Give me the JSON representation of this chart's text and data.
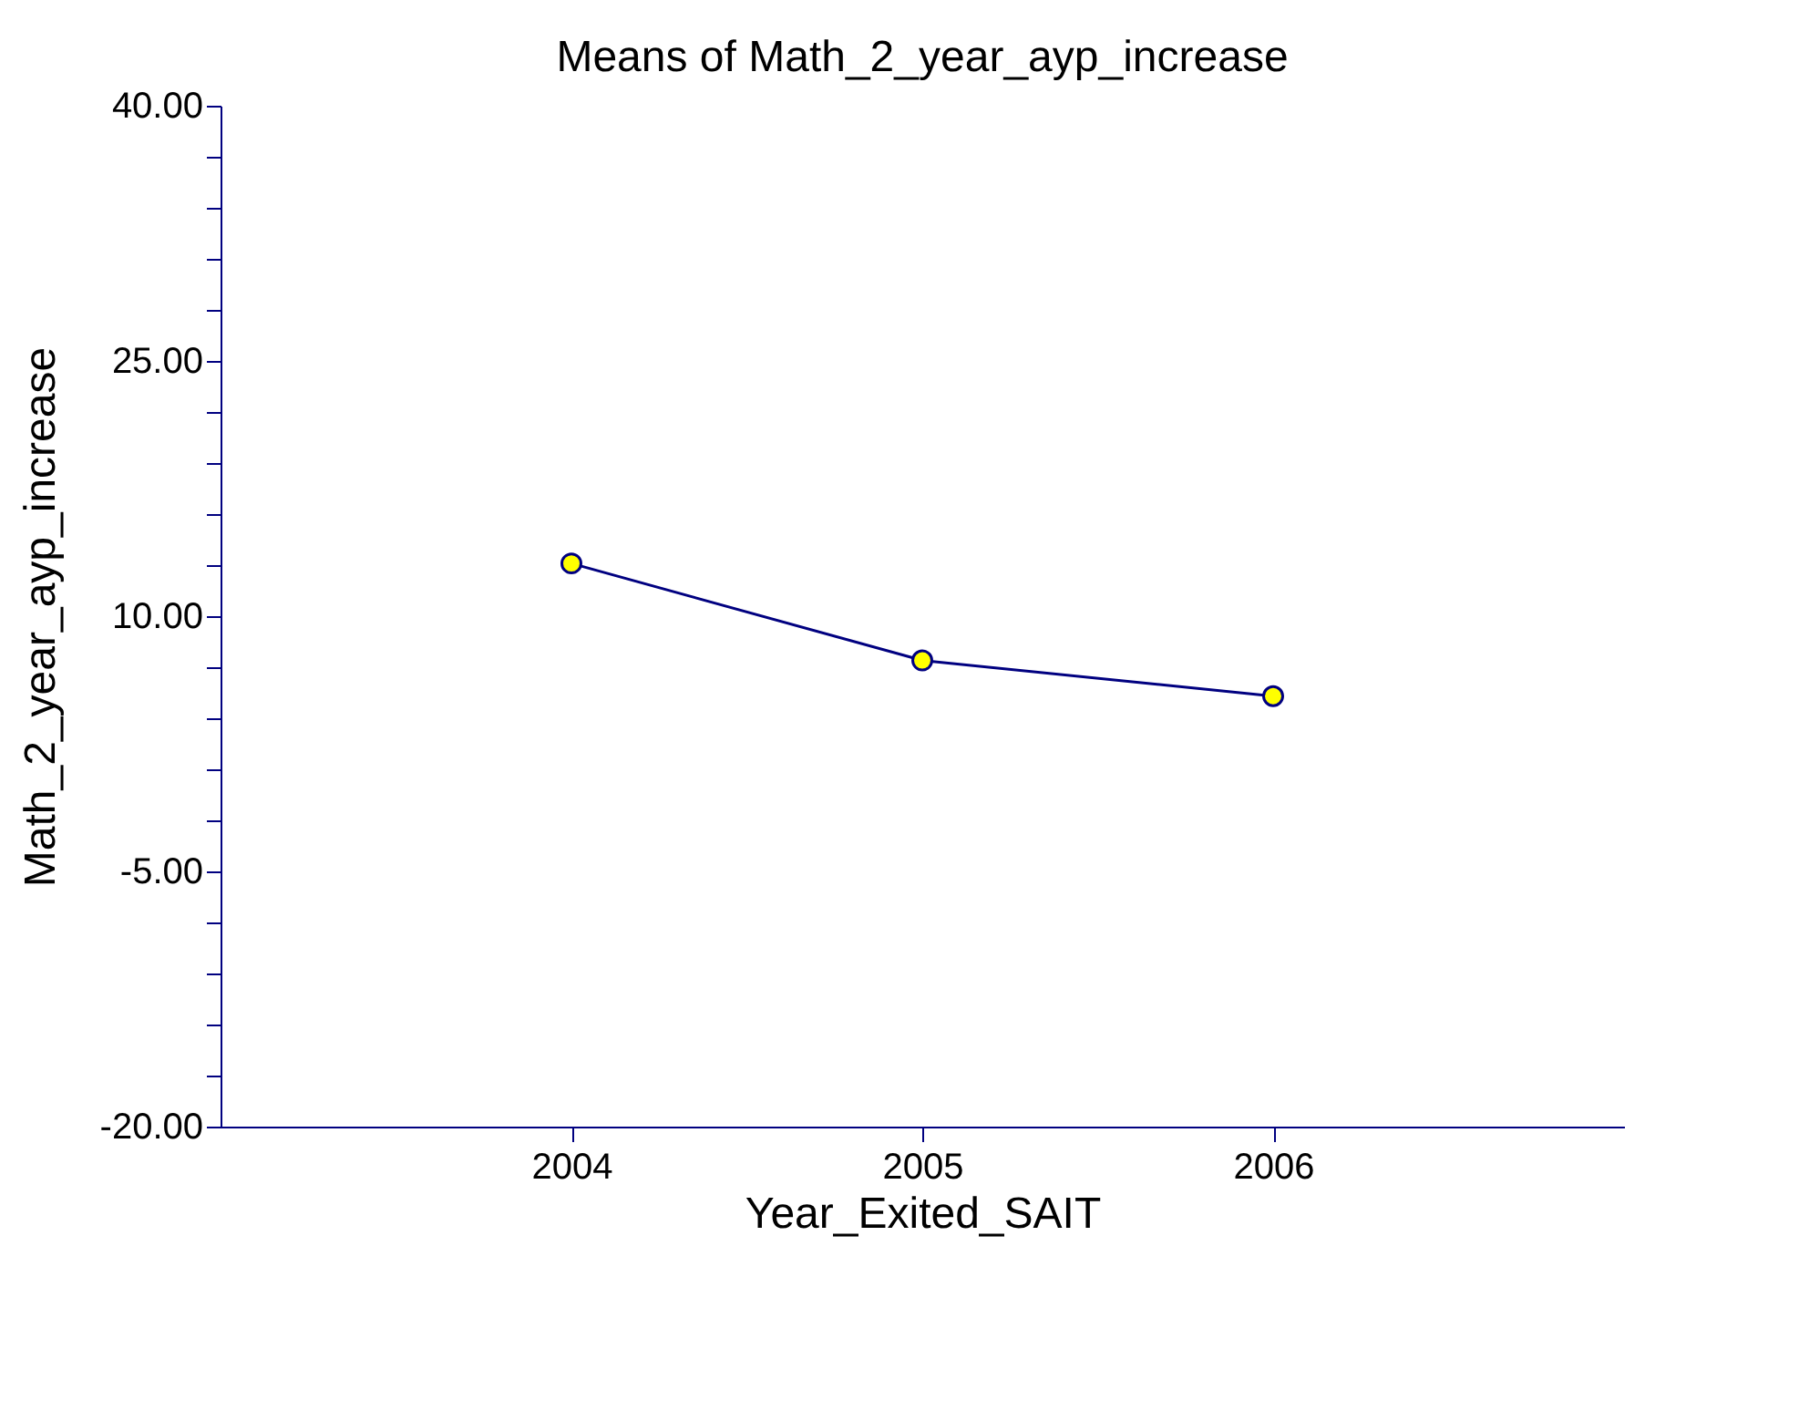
{
  "chart_data": {
    "type": "line",
    "title": "Means of Math_2_year_ayp_increase",
    "xlabel": "Year_Exited_SAIT",
    "ylabel": "Math_2_year_ayp_increase",
    "categories": [
      "2004",
      "2005",
      "2006"
    ],
    "series": [
      {
        "color": "#000080",
        "values": [
          13.1,
          7.4,
          5.3
        ]
      }
    ],
    "marker": "circle",
    "grid": false,
    "legend": false,
    "ylim": [
      -20,
      40
    ],
    "yticks": [
      {
        "value": -20,
        "label": "-20.00"
      },
      {
        "value": -17,
        "label": null
      },
      {
        "value": -14,
        "label": null
      },
      {
        "value": -11,
        "label": null
      },
      {
        "value": -8,
        "label": null
      },
      {
        "value": -5,
        "label": "-5.00"
      },
      {
        "value": -2,
        "label": null
      },
      {
        "value": 1,
        "label": null
      },
      {
        "value": 4,
        "label": null
      },
      {
        "value": 7,
        "label": null
      },
      {
        "value": 10,
        "label": "10.00"
      },
      {
        "value": 13,
        "label": null
      },
      {
        "value": 16,
        "label": null
      },
      {
        "value": 19,
        "label": null
      },
      {
        "value": 22,
        "label": null
      },
      {
        "value": 25,
        "label": "25.00"
      },
      {
        "value": 28,
        "label": null
      },
      {
        "value": 31,
        "label": null
      },
      {
        "value": 34,
        "label": null
      },
      {
        "value": 37,
        "label": null
      },
      {
        "value": 40,
        "label": "40.00"
      }
    ]
  }
}
